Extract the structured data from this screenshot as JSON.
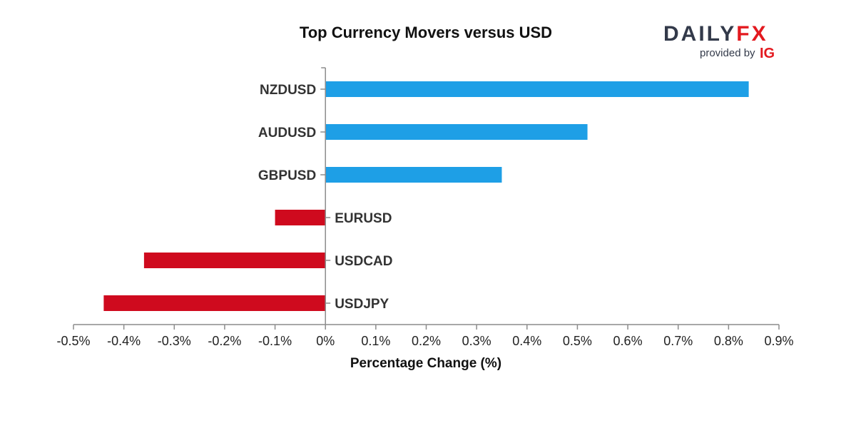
{
  "chart_data": {
    "type": "bar",
    "orientation": "horizontal",
    "title": "Top Currency Movers versus USD",
    "xlabel": "Percentage Change (%)",
    "ylabel": "",
    "categories": [
      "NZDUSD",
      "AUDUSD",
      "GBPUSD",
      "EURUSD",
      "USDCAD",
      "USDJPY"
    ],
    "values": [
      0.84,
      0.52,
      0.35,
      -0.1,
      -0.36,
      -0.44
    ],
    "xlim": [
      -0.5,
      0.9
    ],
    "xticks": [
      -0.5,
      -0.4,
      -0.3,
      -0.2,
      -0.1,
      0,
      0.1,
      0.2,
      0.3,
      0.4,
      0.5,
      0.6,
      0.7,
      0.8,
      0.9
    ],
    "xtick_labels": [
      "-0.5%",
      "-0.4%",
      "-0.3%",
      "-0.2%",
      "-0.1%",
      "0%",
      "0.1%",
      "0.2%",
      "0.3%",
      "0.4%",
      "0.5%",
      "0.6%",
      "0.7%",
      "0.8%",
      "0.9%"
    ],
    "grid": false,
    "colors": {
      "positive": "#1e9fe6",
      "negative": "#cf0a1e"
    }
  },
  "logo": {
    "brand_left": "DAILY",
    "brand_right": "FX",
    "provided_by": "provided by",
    "ig": "IG",
    "colors": {
      "brand": "#333a4a",
      "accent": "#e3191f"
    }
  }
}
